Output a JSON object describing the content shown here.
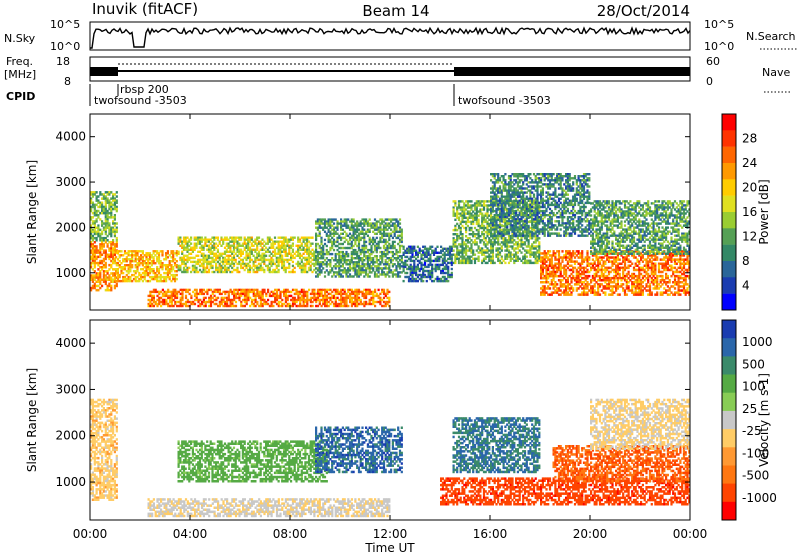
{
  "header": {
    "station": "Inuvik (fitACF)",
    "beam": "Beam 14",
    "date": "28/Oct/2014"
  },
  "top_panels": {
    "nsky_label": "N.Sky",
    "nsky_ticks": [
      "10^5",
      "10^0"
    ],
    "nsearch_label": "N.Search",
    "nsearch_ticks": [
      "10^5",
      "10^0"
    ],
    "freq_label_1": "Freq.",
    "freq_label_2": "[MHz]",
    "freq_ticks": [
      "18",
      "8"
    ],
    "nave_label": "Nave",
    "nave_ticks": [
      "60",
      "0"
    ],
    "cpid_label": "CPID",
    "cpid_entries": [
      {
        "label": "twofsound -3503",
        "start_hour": 0.0
      },
      {
        "label": "rbsp 200",
        "start_hour": 1.0
      },
      {
        "label": "twofsound -3503",
        "start_hour": 14.5
      }
    ]
  },
  "chart_data": [
    {
      "type": "heatmap",
      "title": "",
      "xlabel": "Time UT",
      "ylabel": "Slant Range [km]",
      "xlim": [
        0,
        24
      ],
      "ylim": [
        180,
        4500
      ],
      "x_ticks": [
        "00:00",
        "04:00",
        "08:00",
        "12:00",
        "16:00",
        "20:00",
        "00:00"
      ],
      "y_ticks": [
        "1000",
        "2000",
        "3000",
        "4000"
      ],
      "colorbar": {
        "label": "Power [dB]",
        "ticks": [
          "28",
          "24",
          "20",
          "16",
          "12",
          "8",
          "4"
        ],
        "colors": [
          "#ff0000",
          "#ff3300",
          "#ff6600",
          "#ff9900",
          "#ffcc00",
          "#e0e020",
          "#9acd32",
          "#55a055",
          "#338866",
          "#2a6699",
          "#1a3cb0",
          "#0000ff"
        ]
      },
      "regions": [
        {
          "t0": 0.0,
          "t1": 1.1,
          "r0": 600,
          "r1": 1700,
          "level": 24
        },
        {
          "t0": 0.0,
          "t1": 1.1,
          "r0": 1700,
          "r1": 2800,
          "level": 14
        },
        {
          "t0": 2.3,
          "t1": 12.0,
          "r0": 250,
          "r1": 650,
          "level": 26
        },
        {
          "t0": 1.0,
          "t1": 3.5,
          "r0": 800,
          "r1": 1500,
          "level": 22
        },
        {
          "t0": 3.5,
          "t1": 9.0,
          "r0": 1000,
          "r1": 1800,
          "level": 18
        },
        {
          "t0": 9.0,
          "t1": 12.5,
          "r0": 900,
          "r1": 2200,
          "level": 12
        },
        {
          "t0": 12.5,
          "t1": 14.5,
          "r0": 800,
          "r1": 1600,
          "level": 8
        },
        {
          "t0": 14.5,
          "t1": 18.0,
          "r0": 1200,
          "r1": 2600,
          "level": 14
        },
        {
          "t0": 16.0,
          "t1": 20.0,
          "r0": 1800,
          "r1": 3200,
          "level": 10
        },
        {
          "t0": 18.0,
          "t1": 24.0,
          "r0": 500,
          "r1": 1500,
          "level": 26
        },
        {
          "t0": 20.0,
          "t1": 24.0,
          "r0": 1400,
          "r1": 2600,
          "level": 12
        }
      ]
    },
    {
      "type": "heatmap",
      "title": "",
      "xlabel": "Time UT",
      "ylabel": "Slant Range [km]",
      "xlim": [
        0,
        24
      ],
      "ylim": [
        180,
        4500
      ],
      "x_ticks": [
        "00:00",
        "04:00",
        "08:00",
        "12:00",
        "16:00",
        "20:00",
        "00:00"
      ],
      "y_ticks": [
        "1000",
        "2000",
        "3000",
        "4000"
      ],
      "colorbar": {
        "label": "Velocity [m s-1]",
        "ticks": [
          "1000",
          "500",
          "100",
          "25",
          "-25",
          "-100",
          "-500",
          "-1000"
        ],
        "colors": [
          "#1a3cb0",
          "#2a66aa",
          "#3a8a6a",
          "#55aa44",
          "#88cc55",
          "#c8c8c8",
          "#ffcc66",
          "#ff9933",
          "#ff7711",
          "#ff4400",
          "#ff0000"
        ]
      },
      "regions": [
        {
          "t0": 0.0,
          "t1": 1.1,
          "r0": 600,
          "r1": 2800,
          "level": 0
        },
        {
          "t0": 2.3,
          "t1": 12.0,
          "r0": 250,
          "r1": 650,
          "level": 20
        },
        {
          "t0": 3.5,
          "t1": 9.5,
          "r0": 1000,
          "r1": 1900,
          "level": 150
        },
        {
          "t0": 9.0,
          "t1": 12.5,
          "r0": 1200,
          "r1": 2200,
          "level": 800
        },
        {
          "t0": 14.5,
          "t1": 18.0,
          "r0": 1200,
          "r1": 2400,
          "level": 600
        },
        {
          "t0": 14.0,
          "t1": 24.0,
          "r0": 500,
          "r1": 1100,
          "level": -300
        },
        {
          "t0": 18.5,
          "t1": 24.0,
          "r0": 1000,
          "r1": 1800,
          "level": -150
        },
        {
          "t0": 20.0,
          "t1": 24.0,
          "r0": 1700,
          "r1": 2800,
          "level": 10
        }
      ]
    }
  ]
}
